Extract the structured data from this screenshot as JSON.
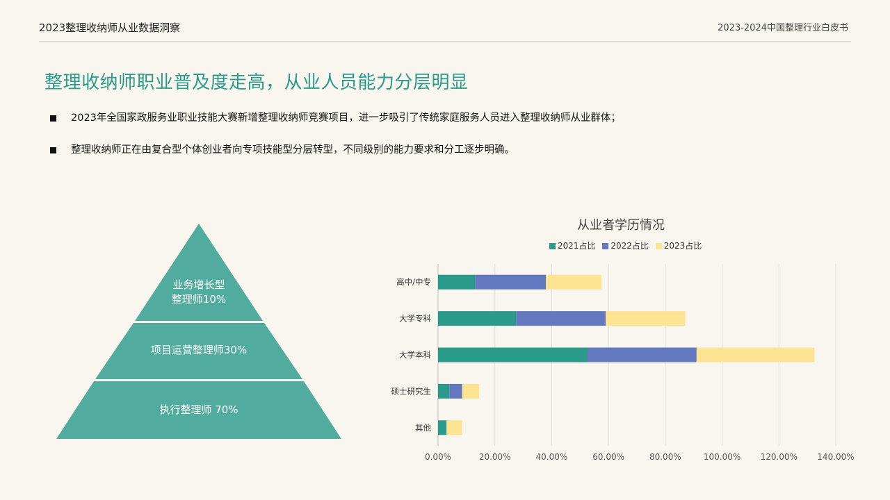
{
  "header": {
    "left_title": "2023整理收纳师从业数据洞察",
    "right_title": "2023-2024中国整理行业白皮书"
  },
  "page_title": "整理收纳师职业普及度走高，从业人员能力分层明显",
  "bullets": [
    "2023年全国家政服务业职业技能大赛新增整理收纳师竞赛项目，进一步吸引了传统家庭服务人员进入整理收纳师从业群体；",
    "整理收纳师正在由复合型个体创业者向专项技能型分层转型，不同级别的能力要求和分工逐步明确。"
  ],
  "pyramid": {
    "color": "#52ab9f",
    "levels": [
      {
        "line1": "业务增长型",
        "line2": "整理师10%"
      },
      {
        "line1": "项目运营整理师30%",
        "line2": ""
      },
      {
        "line1": "执行整理师 70%",
        "line2": ""
      }
    ]
  },
  "chart_data": {
    "type": "bar",
    "orientation": "horizontal",
    "stacked": true,
    "title": "从业者学历情况",
    "legend_position": "top",
    "categories": [
      "高中/中专",
      "大学专科",
      "大学本科",
      "硕士研究生",
      "其他"
    ],
    "series": [
      {
        "name": "2021占比",
        "color": "#2a9a8a",
        "values": [
          13,
          27.5,
          52.5,
          4,
          3
        ]
      },
      {
        "name": "2022占比",
        "color": "#6478c0",
        "values": [
          25,
          31.5,
          38.5,
          4.5,
          0
        ]
      },
      {
        "name": "2023占比",
        "color": "#fce493",
        "values": [
          19.5,
          28,
          41.5,
          6,
          5.5
        ]
      }
    ],
    "xlim": [
      0,
      140
    ],
    "x_ticks": [
      "0.00%",
      "20.00%",
      "40.00%",
      "60.00%",
      "80.00%",
      "100.00%",
      "120.00%",
      "140.00%"
    ],
    "grid": "vertical",
    "xlabel": "",
    "ylabel": ""
  }
}
